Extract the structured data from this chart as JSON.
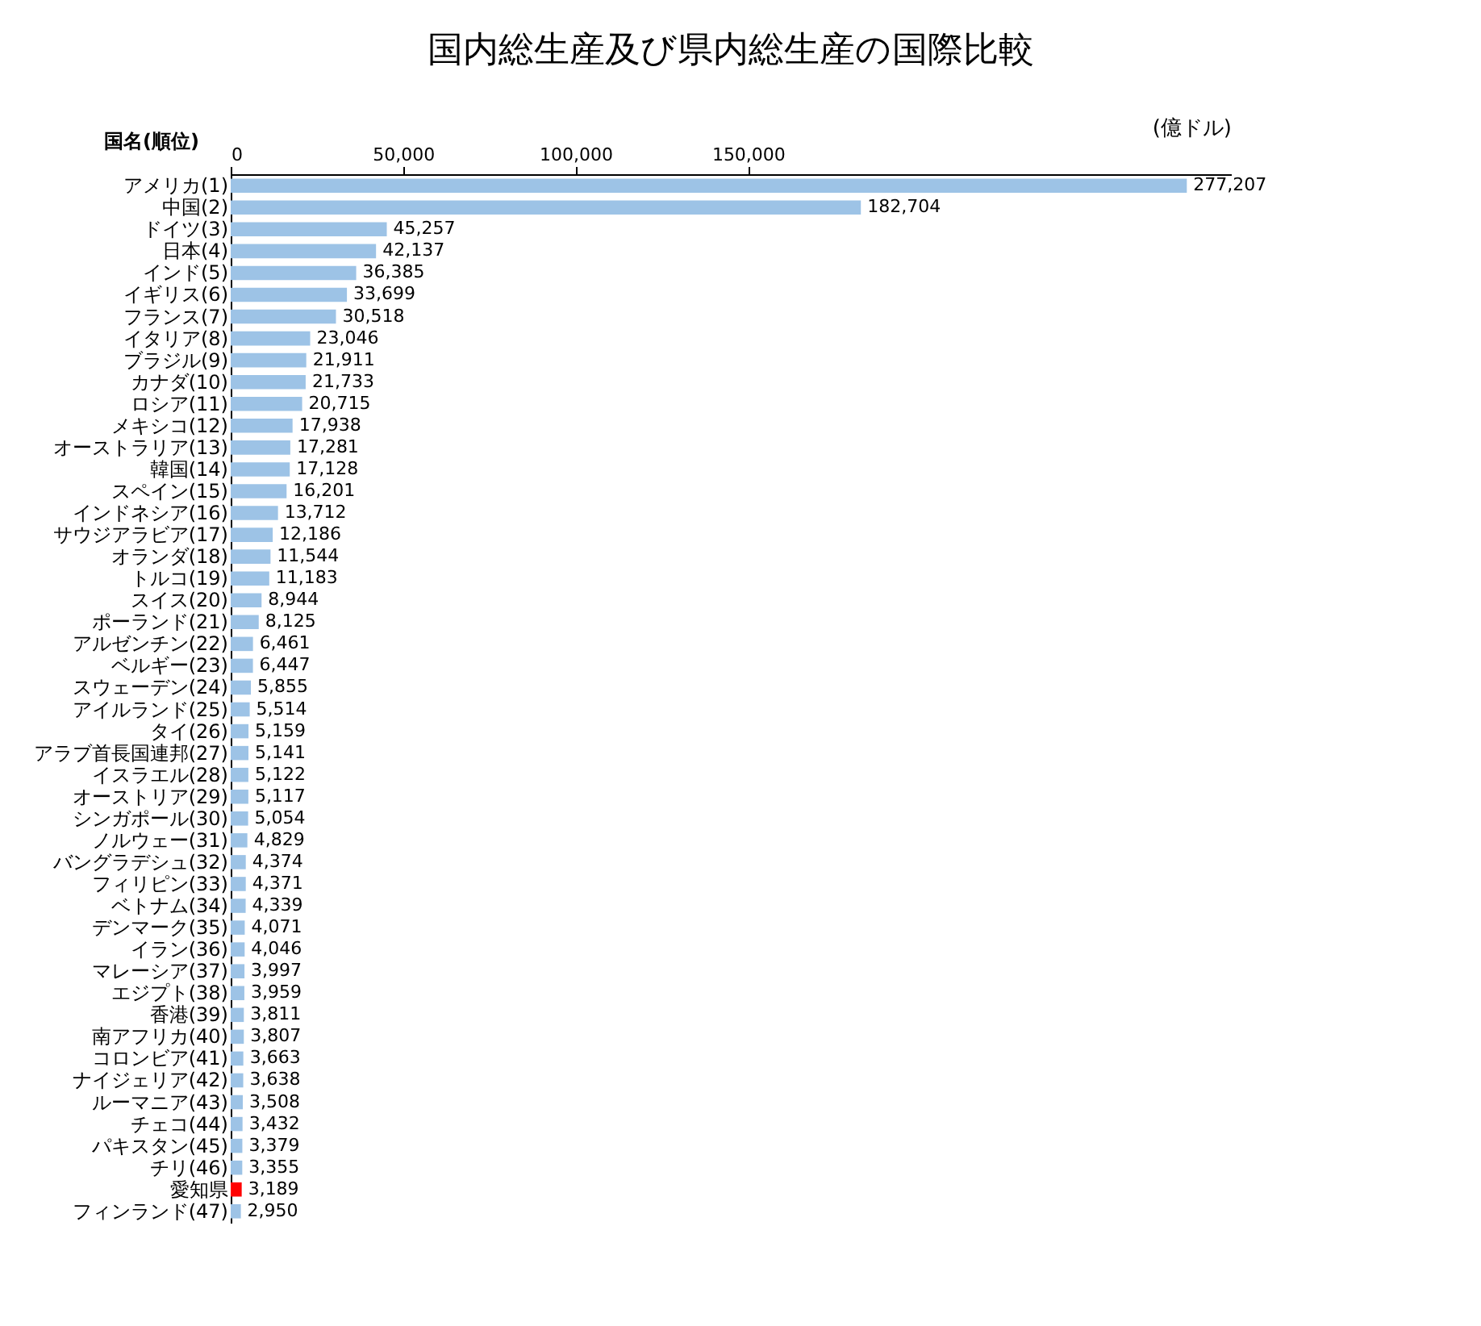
{
  "chart_data": {
    "type": "bar",
    "orientation": "horizontal",
    "title": "国内総生産及び県内総生産の国際比較",
    "xlabel": "(億ドル)",
    "ylabel": "国名(順位)",
    "categories": [
      "アメリカ(1)",
      "中国(2)",
      "ドイツ(3)",
      "日本(4)",
      "インド(5)",
      "イギリス(6)",
      "フランス(7)",
      "イタリア(8)",
      "ブラジル(9)",
      "カナダ(10)",
      "ロシア(11)",
      "メキシコ(12)",
      "オーストラリア(13)",
      "韓国(14)",
      "スペイン(15)",
      "インドネシア(16)",
      "サウジアラビア(17)",
      "オランダ(18)",
      "トルコ(19)",
      "スイス(20)",
      "ポーランド(21)",
      "アルゼンチン(22)",
      "ベルギー(23)",
      "スウェーデン(24)",
      "アイルランド(25)",
      "タイ(26)",
      "アラブ首長国連邦(27)",
      "イスラエル(28)",
      "オーストリア(29)",
      "シンガポール(30)",
      "ノルウェー(31)",
      "バングラデシュ(32)",
      "フィリピン(33)",
      "ベトナム(34)",
      "デンマーク(35)",
      "イラン(36)",
      "マレーシア(37)",
      "エジプト(38)",
      "香港(39)",
      "南アフリカ(40)",
      "コロンビア(41)",
      "ナイジェリア(42)",
      "ルーマニア(43)",
      "チェコ(44)",
      "パキスタン(45)",
      "チリ(46)",
      "愛知県",
      "フィンランド(47)"
    ],
    "values": [
      277207,
      182704,
      45257,
      42137,
      36385,
      33699,
      30518,
      23046,
      21911,
      21733,
      20715,
      17938,
      17281,
      17128,
      16201,
      13712,
      12186,
      11544,
      11183,
      8944,
      8125,
      6461,
      6447,
      5855,
      5514,
      5159,
      5141,
      5122,
      5117,
      5054,
      4829,
      4374,
      4371,
      4339,
      4071,
      4046,
      3997,
      3959,
      3811,
      3807,
      3663,
      3638,
      3508,
      3432,
      3379,
      3355,
      3189,
      2950
    ],
    "value_labels": [
      "277,207",
      "182,704",
      "45,257",
      "42,137",
      "36,385",
      "33,699",
      "30,518",
      "23,046",
      "21,911",
      "21,733",
      "20,715",
      "17,938",
      "17,281",
      "17,128",
      "16,201",
      "13,712",
      "12,186",
      "11,544",
      "11,183",
      "8,944",
      "8,125",
      "6,461",
      "6,447",
      "5,855",
      "5,514",
      "5,159",
      "5,141",
      "5,122",
      "5,117",
      "5,054",
      "4,829",
      "4,374",
      "4,371",
      "4,339",
      "4,071",
      "4,046",
      "3,997",
      "3,959",
      "3,811",
      "3,807",
      "3,663",
      "3,638",
      "3,508",
      "3,432",
      "3,379",
      "3,355",
      "3,189",
      "2,950"
    ],
    "colors": [
      "#9dc3e6",
      "#9dc3e6",
      "#9dc3e6",
      "#9dc3e6",
      "#9dc3e6",
      "#9dc3e6",
      "#9dc3e6",
      "#9dc3e6",
      "#9dc3e6",
      "#9dc3e6",
      "#9dc3e6",
      "#9dc3e6",
      "#9dc3e6",
      "#9dc3e6",
      "#9dc3e6",
      "#9dc3e6",
      "#9dc3e6",
      "#9dc3e6",
      "#9dc3e6",
      "#9dc3e6",
      "#9dc3e6",
      "#9dc3e6",
      "#9dc3e6",
      "#9dc3e6",
      "#9dc3e6",
      "#9dc3e6",
      "#9dc3e6",
      "#9dc3e6",
      "#9dc3e6",
      "#9dc3e6",
      "#9dc3e6",
      "#9dc3e6",
      "#9dc3e6",
      "#9dc3e6",
      "#9dc3e6",
      "#9dc3e6",
      "#9dc3e6",
      "#9dc3e6",
      "#9dc3e6",
      "#9dc3e6",
      "#9dc3e6",
      "#9dc3e6",
      "#9dc3e6",
      "#9dc3e6",
      "#9dc3e6",
      "#9dc3e6",
      "#ff0000",
      "#9dc3e6"
    ],
    "xlim": [
      0,
      290000
    ],
    "xticks": [
      0,
      {
        "value": 50000,
        "label": "50,000"
      },
      {
        "value": 100000,
        "label": "100,000"
      },
      {
        "value": 150000,
        "label": "150,000"
      }
    ],
    "grid": false
  }
}
